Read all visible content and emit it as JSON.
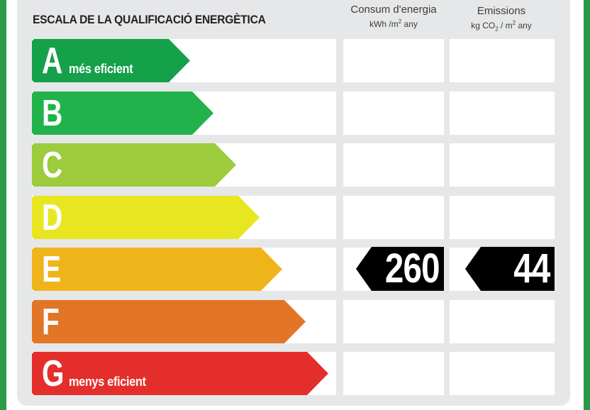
{
  "title": "ESCALA DE LA QUALIFICACIÓ ENERGÈTICA",
  "columns": {
    "consum": {
      "line1": "Consum d'energia",
      "unit_a": "kWh /m",
      "unit_sup": "2",
      "unit_b": " any"
    },
    "emissions": {
      "line1": "Emissions",
      "unit_a": "kg CO",
      "unit_sub": "2",
      "unit_c": " / m",
      "unit_sup": "2",
      "unit_b": " any"
    }
  },
  "classes": [
    {
      "letter": "A",
      "label": "més eficient",
      "color": "#15a04a"
    },
    {
      "letter": "B",
      "label": "",
      "color": "#21b24b"
    },
    {
      "letter": "C",
      "label": "",
      "color": "#9ccb3b"
    },
    {
      "letter": "D",
      "label": "",
      "color": "#e8e620"
    },
    {
      "letter": "E",
      "label": "",
      "color": "#f0b41b"
    },
    {
      "letter": "F",
      "label": "",
      "color": "#e37527"
    },
    {
      "letter": "G",
      "label": "menys eficient",
      "color": "#e42e2b"
    }
  ],
  "rating": {
    "class": "E",
    "consum_value": "260",
    "emissions_value": "44"
  },
  "colors": {
    "border": "#2a9a4a",
    "panel": "#e6e7e8",
    "badge": "#000000"
  }
}
